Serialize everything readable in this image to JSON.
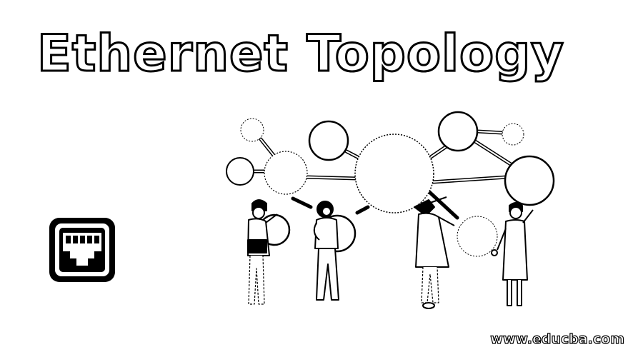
{
  "title": "Ethernet Topology",
  "watermark": "www.educba.com",
  "icons": {
    "port": "ethernet-port-icon"
  },
  "colors": {
    "ink": "#000000",
    "paper": "#ffffff"
  }
}
